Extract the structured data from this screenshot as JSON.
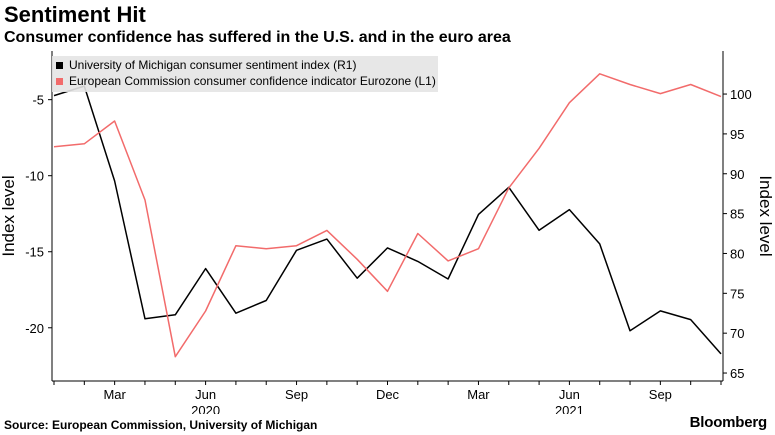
{
  "title": "Sentiment Hit",
  "subtitle": "Consumer confidence has suffered in the U.S. and in the euro area",
  "source": "Source: European Commission, University of Michigan",
  "brand": "Bloomberg",
  "chart_data": {
    "type": "line",
    "x": [
      "2020-01",
      "2020-02",
      "2020-03",
      "2020-04",
      "2020-05",
      "2020-06",
      "2020-07",
      "2020-08",
      "2020-09",
      "2020-10",
      "2020-11",
      "2020-12",
      "2021-01",
      "2021-02",
      "2021-03",
      "2021-04",
      "2021-05",
      "2021-06",
      "2021-07",
      "2021-08",
      "2021-09",
      "2021-10",
      "2021-11"
    ],
    "x_ticks": [
      {
        "x": "2020-03",
        "label": "Mar"
      },
      {
        "x": "2020-06",
        "label": "Jun"
      },
      {
        "x": "2020-09",
        "label": "Sep"
      },
      {
        "x": "2020-12",
        "label": "Dec"
      },
      {
        "x": "2021-03",
        "label": "Mar"
      },
      {
        "x": "2021-06",
        "label": "Jun"
      },
      {
        "x": "2021-09",
        "label": "Sep"
      }
    ],
    "x_year_labels": [
      {
        "x": "2020-06",
        "label": "2020"
      },
      {
        "x": "2021-06",
        "label": "2021"
      }
    ],
    "left_axis": {
      "label": "Index level",
      "range": [
        -23.5,
        -1.8
      ],
      "ticks": [
        -5,
        -10,
        -15,
        -20
      ]
    },
    "right_axis": {
      "label": "Index level",
      "range": [
        64,
        105.4
      ],
      "ticks": [
        100,
        95,
        90,
        85,
        80,
        75,
        70,
        65
      ]
    },
    "series": [
      {
        "name": "University of Michigan consumer sentiment index (R1)",
        "axis": "right",
        "color": "#000000",
        "values": [
          99.8,
          101.0,
          89.1,
          71.8,
          72.3,
          78.1,
          72.5,
          74.1,
          80.4,
          81.8,
          76.9,
          80.7,
          79.0,
          76.8,
          84.9,
          88.3,
          82.9,
          85.5,
          81.2,
          70.3,
          72.8,
          71.7,
          67.4
        ]
      },
      {
        "name": "European Commission consumer confidence indicator Eurozone (L1)",
        "axis": "left",
        "color": "#f26b6b",
        "values": [
          -8.1,
          -7.9,
          -6.4,
          -11.6,
          -21.9,
          -18.9,
          -14.6,
          -14.8,
          -14.6,
          -13.6,
          -15.5,
          -17.6,
          -13.8,
          -15.6,
          -14.8,
          -10.8,
          -8.2,
          -5.2,
          -3.3,
          -4.0,
          -4.6,
          -4.0,
          -4.8
        ]
      }
    ],
    "legend": "top-left",
    "grid": false
  }
}
